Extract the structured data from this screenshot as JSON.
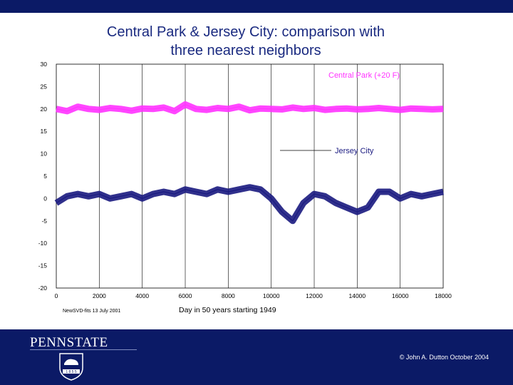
{
  "slide": {
    "title_line1": "Central Park & Jersey City: comparison with",
    "title_line2": "three nearest neighbors",
    "brand": "PENNSTATE",
    "copyright": "© John A. Dutton October 2004",
    "seal_text": "1 8 5 5"
  },
  "colors": {
    "header_band": "#0b1a66",
    "footer_band": "#0b1a66",
    "title_text": "#1a2a80",
    "central_park": "#ff33ff",
    "jersey_city": "#1a1a80"
  },
  "chart_data": {
    "type": "line",
    "title": "",
    "xlabel": "Day in 50 years starting 1949",
    "ylabel": "",
    "note": "NewSVD-fits 13 July 2001",
    "xlim": [
      0,
      18000
    ],
    "ylim": [
      -20,
      30
    ],
    "x_ticks": [
      "0",
      "2000",
      "4000",
      "6000",
      "8000",
      "10000",
      "12000",
      "14000",
      "16000",
      "18000"
    ],
    "y_ticks": [
      "30",
      "25",
      "20",
      "15",
      "10",
      "5",
      "0",
      "-5",
      "-10",
      "-15",
      "-20"
    ],
    "grid": "vertical",
    "series": [
      {
        "name": "Central Park (+20 F)",
        "color": "#ff33ff",
        "x": [
          0,
          500,
          1000,
          1500,
          2000,
          2500,
          3000,
          3500,
          4000,
          4500,
          5000,
          5500,
          6000,
          6500,
          7000,
          7500,
          8000,
          8500,
          9000,
          9500,
          10000,
          10500,
          11000,
          11500,
          12000,
          12500,
          13000,
          13500,
          14000,
          14500,
          15000,
          15500,
          16000,
          16500,
          17000,
          17500,
          18000
        ],
        "y": [
          20,
          19.5,
          20.5,
          20,
          19.8,
          20.2,
          20,
          19.6,
          20.1,
          20,
          20.3,
          19.5,
          21,
          20,
          19.8,
          20.2,
          20,
          20.5,
          19.7,
          20.1,
          20,
          19.9,
          20.3,
          20,
          20.2,
          19.8,
          20,
          20.1,
          19.9,
          20,
          20.2,
          20,
          19.8,
          20.1,
          20,
          19.9,
          20
        ]
      },
      {
        "name": "Jersey City",
        "color": "#1a1a80",
        "x": [
          0,
          500,
          1000,
          1500,
          2000,
          2500,
          3000,
          3500,
          4000,
          4500,
          5000,
          5500,
          6000,
          6500,
          7000,
          7500,
          8000,
          8500,
          9000,
          9500,
          10000,
          10500,
          11000,
          11500,
          12000,
          12500,
          13000,
          13500,
          14000,
          14500,
          15000,
          15500,
          16000,
          16500,
          17000,
          17500,
          18000
        ],
        "y": [
          -1,
          0.5,
          1,
          0.5,
          1,
          0,
          0.5,
          1,
          0,
          1,
          1.5,
          1,
          2,
          1.5,
          1,
          2,
          1.5,
          2,
          2.5,
          2,
          0,
          -3,
          -5,
          -1,
          1,
          0.5,
          -1,
          -2,
          -3,
          -2,
          1.5,
          1.5,
          0,
          1,
          0.5,
          1,
          1.5
        ]
      }
    ]
  }
}
